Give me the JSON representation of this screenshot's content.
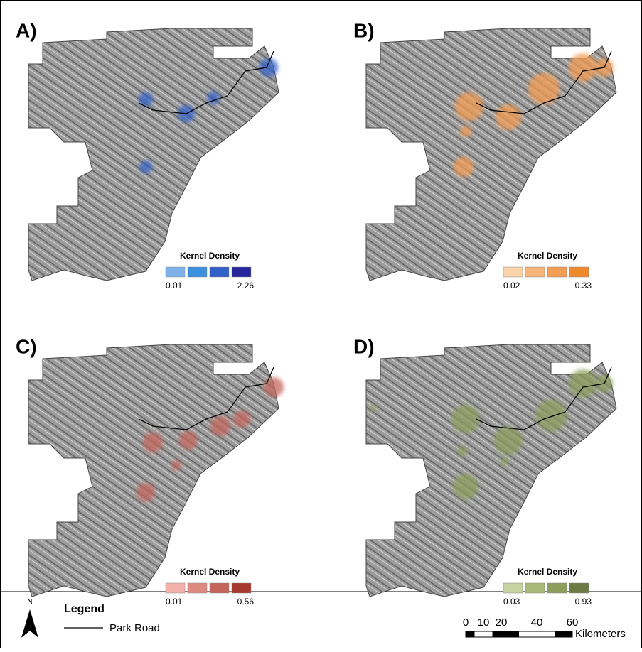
{
  "panels": [
    {
      "label": "A)",
      "legend_title": "Kernel Density",
      "min_label": "0.01",
      "max_label": "2.26",
      "swatches": [
        "#7fb2e8",
        "#3d8fe0",
        "#3260c8",
        "#26279a"
      ]
    },
    {
      "label": "B)",
      "legend_title": "Kernel Density",
      "min_label": "0.02",
      "max_label": "0.33",
      "swatches": [
        "#fbd3aa",
        "#f8b57a",
        "#f59d52",
        "#f0882e"
      ]
    },
    {
      "label": "C)",
      "legend_title": "Kernel Density",
      "min_label": "0.01",
      "max_label": "0.56",
      "swatches": [
        "#f2b1aa",
        "#dc8a80",
        "#c4655b",
        "#a8392f"
      ]
    },
    {
      "label": "D)",
      "legend_title": "Kernel Density",
      "min_label": "0.03",
      "max_label": "0.93",
      "swatches": [
        "#c6d3a0",
        "#a8ba78",
        "#8c9d5c",
        "#6e7a44"
      ]
    }
  ],
  "footer": {
    "north": "N",
    "legend_title": "Legend",
    "road_label": "Park Road",
    "scale_ticks": [
      0,
      10,
      20,
      40,
      60
    ],
    "scale_unit": "Kilometers"
  }
}
